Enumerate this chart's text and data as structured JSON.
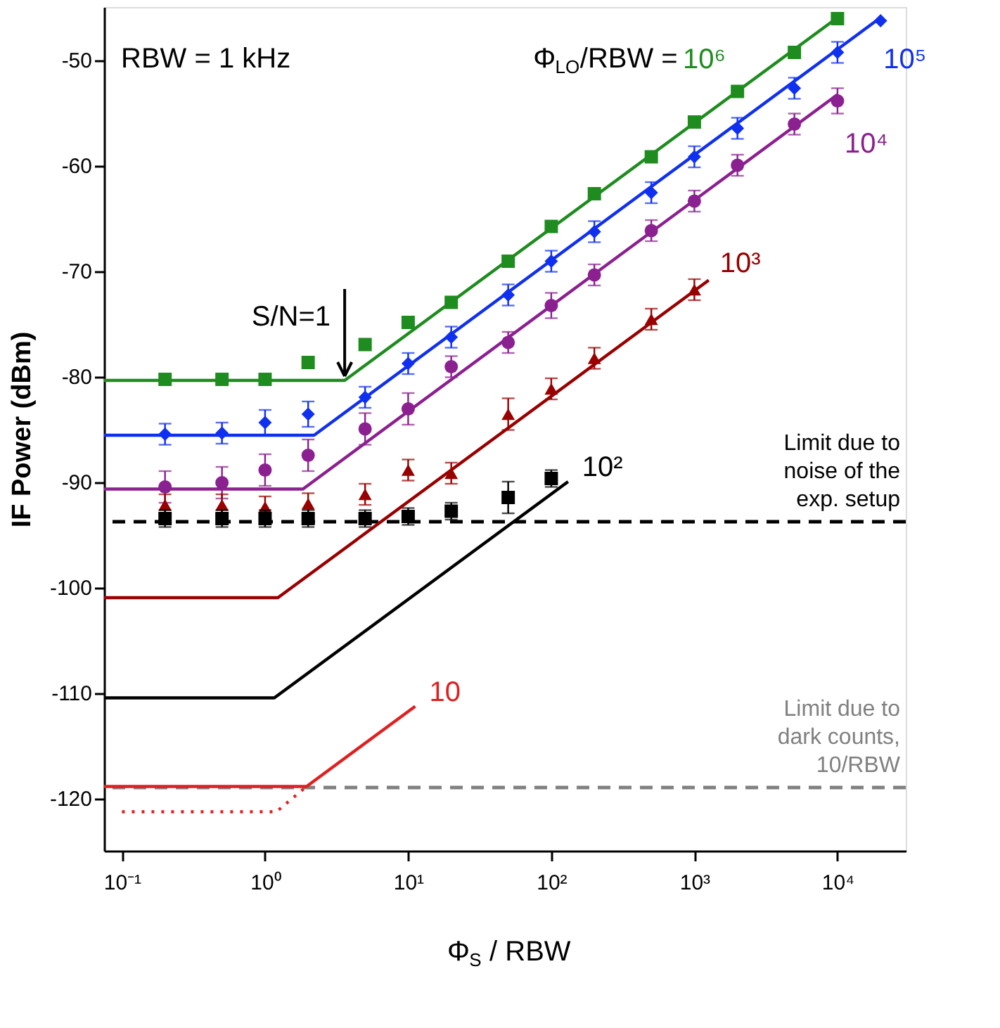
{
  "chart_data": {
    "type": "scatter",
    "xlabel": "Φ$_{S}$ / RBW",
    "ylabel": "IF Power (dBm)",
    "log": "x",
    "grid": false,
    "xlim": [
      0.075,
      30000
    ],
    "ylim": [
      -125,
      -45
    ],
    "xticks": [
      {
        "value": 0.1,
        "label": "10⁻¹"
      },
      {
        "value": 1,
        "label": "10⁰"
      },
      {
        "value": 10,
        "label": "10¹"
      },
      {
        "value": 100,
        "label": "10²"
      },
      {
        "value": 1000,
        "label": "10³"
      },
      {
        "value": 10000,
        "label": "10⁴"
      }
    ],
    "yticks": [
      -120,
      -110,
      -100,
      -90,
      -80,
      -70,
      -60,
      -50
    ],
    "x": [
      0.2,
      0.5,
      1,
      2,
      5,
      10,
      20,
      50,
      100,
      200,
      500,
      1000,
      2000,
      5000,
      10000,
      20000
    ],
    "annotations": [
      "RBW = 1 kHz",
      "Φ$_{LO}$/RBW =",
      {
        "text": "S/N=1",
        "x": 3.6,
        "y": -80
      }
    ],
    "ref_lines": [
      {
        "axis": "y",
        "value": -93.8,
        "label": "Limit due to noise of the exp. setup",
        "color": "#000000",
        "line_style": "dashed"
      },
      {
        "axis": "y",
        "value": -119,
        "label": "Limit due to dark counts, 10/RBW",
        "color": "#808080",
        "line_style": "dashed"
      }
    ],
    "series": [
      {
        "marker": "square",
        "color": "#1e8c1e",
        "values": [
          -80.3,
          -80.3,
          -80.3,
          -78.7,
          -77.0,
          -74.9,
          -73.0,
          -69.1,
          -65.8,
          -62.7,
          -59.2,
          -55.9,
          -53.0,
          -49.3,
          -46.1,
          null
        ]
      },
      {
        "marker": "diamond",
        "color": "#1030f0",
        "values": [
          -85.5,
          -85.4,
          -84.4,
          -83.6,
          -82.0,
          -78.8,
          -76.3,
          -72.3,
          -69.1,
          -66.3,
          -62.6,
          -59.2,
          -56.5,
          -52.7,
          -49.3,
          -46.3
        ],
        "errors": [
          1,
          1,
          1.2,
          1.2,
          1,
          1,
          1,
          1,
          1,
          1,
          1,
          1,
          1,
          1,
          1,
          null
        ]
      },
      {
        "marker": "circle",
        "color": "#8b2090",
        "values": [
          -90.5,
          -90.1,
          -88.9,
          -87.5,
          -85.0,
          -83.1,
          -79.1,
          -76.8,
          -73.3,
          -70.4,
          -66.2,
          -63.4,
          -60.0,
          -56.1,
          -53.9,
          null
        ],
        "errors": [
          1.5,
          1.5,
          1.5,
          1.5,
          1.5,
          1.5,
          1,
          1,
          1.2,
          1,
          1,
          1,
          1,
          1,
          1.2,
          null
        ]
      },
      {
        "marker": "triangle",
        "color": "#990000",
        "values": [
          -92.2,
          -92.2,
          -92.4,
          -92.1,
          -91.2,
          -88.9,
          -89.2,
          -83.6,
          -81.2,
          -78.3,
          -74.6,
          -71.8,
          null,
          null,
          null,
          null
        ],
        "errors": [
          1,
          1,
          1,
          1,
          1,
          1,
          1,
          1.5,
          1,
          1,
          1,
          1,
          null,
          null,
          null,
          null
        ]
      },
      {
        "marker": "square",
        "color": "#000000",
        "values": [
          -93.5,
          -93.5,
          -93.5,
          -93.5,
          -93.5,
          -93.3,
          -92.8,
          -91.5,
          -89.7,
          null,
          null,
          null,
          null,
          null,
          null,
          null
        ],
        "errors": [
          0.8,
          0.8,
          0.8,
          0.8,
          0.8,
          0.8,
          0.8,
          1.5,
          0.8,
          null,
          null,
          null,
          null,
          null,
          null,
          null
        ]
      },
      {
        "type": "line",
        "name": "10⁶",
        "color": "#1e8c1e",
        "x": [
          0.075,
          3.6,
          10000
        ],
        "values": [
          -80.4,
          -80.4,
          -46.0
        ]
      },
      {
        "type": "line",
        "name": "10⁵",
        "color": "#1030f0",
        "x": [
          0.075,
          2.2,
          20000
        ],
        "values": [
          -85.6,
          -85.6,
          -46.0
        ]
      },
      {
        "type": "line",
        "name": "10⁴",
        "color": "#8b2090",
        "x": [
          0.075,
          1.84,
          10000
        ],
        "values": [
          -90.7,
          -90.7,
          -53.3
        ]
      },
      {
        "type": "line",
        "name": "10³",
        "color": "#990000",
        "x": [
          0.075,
          1.23,
          1260
        ],
        "values": [
          -101.0,
          -101.0,
          -70.9
        ]
      },
      {
        "type": "line",
        "name": "10²",
        "color": "#000000",
        "x": [
          0.075,
          1.16,
          131
        ],
        "values": [
          -110.5,
          -110.5,
          -90.0
        ]
      },
      {
        "type": "line",
        "name": "10",
        "color": "#e02020",
        "x": [
          0.075,
          1.95,
          11.2
        ],
        "values": [
          -118.9,
          -118.9,
          -111.3
        ]
      },
      {
        "type": "line",
        "line_style": "dotted",
        "color": "#e02020",
        "x": [
          0.1,
          1.2,
          1.95
        ],
        "values": [
          -121.3,
          -121.3,
          -118.9
        ]
      }
    ]
  }
}
